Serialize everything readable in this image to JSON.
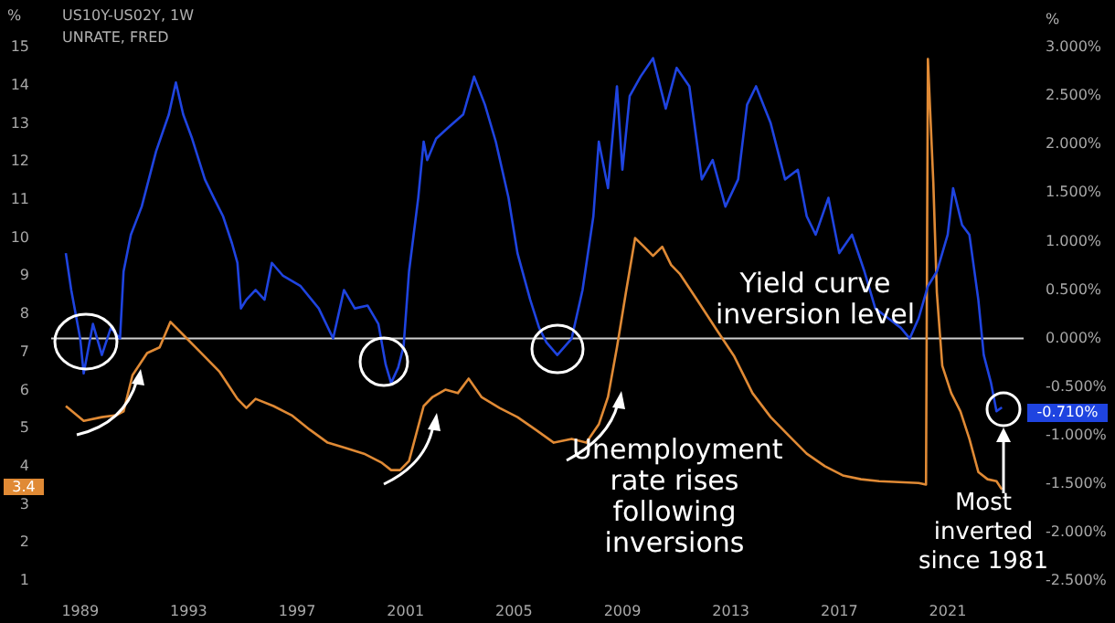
{
  "chart_data": {
    "type": "line",
    "title": "US10Y-US02Y, 1W",
    "subtitle": "UNRATE, FRED",
    "ylabel": "%",
    "y2label": "%",
    "xlim": [
      1987.93,
      2023.8
    ],
    "xticks": [
      1989,
      1993,
      1997,
      2001,
      2005,
      2009,
      2013,
      2017,
      2021
    ],
    "ylim": [
      1,
      15
    ],
    "yticks": [
      1,
      2,
      3,
      4,
      5,
      6,
      7,
      8,
      9,
      10,
      11,
      12,
      13,
      14,
      15
    ],
    "y2lim": [
      -2.5,
      3
    ],
    "y2ticks": [
      {
        "value": 3,
        "label": "3.000%"
      },
      {
        "value": 2.5,
        "label": "2.500%"
      },
      {
        "value": 2,
        "label": "2.000%"
      },
      {
        "value": 1.5,
        "label": "1.500%"
      },
      {
        "value": 1,
        "label": "1.000%"
      },
      {
        "value": 0.5,
        "label": "0.500%"
      },
      {
        "value": 0,
        "label": "0.000%"
      },
      {
        "value": -0.5,
        "label": "-0.500%"
      },
      {
        "value": -1,
        "label": "-1.000%"
      },
      {
        "value": -1.5,
        "label": "-1.500%"
      },
      {
        "value": -2,
        "label": "-2.000%"
      },
      {
        "value": -2.5,
        "label": "-2.500%"
      }
    ],
    "series": [
      {
        "axis": "y2",
        "color": "#1f44e0",
        "x": [
          1988.47,
          1988.67,
          1989.0,
          1989.13,
          1989.47,
          1989.8,
          1990.13,
          1990.47,
          1990.6,
          1990.87,
          1991.27,
          1991.8,
          1992.27,
          1992.53,
          1992.8,
          1993.13,
          1993.6,
          1993.93,
          1994.27,
          1994.6,
          1994.8,
          1994.93,
          1995.13,
          1995.47,
          1995.8,
          1996.07,
          1996.47,
          1997.13,
          1997.8,
          1998.33,
          1998.73,
          1999.13,
          1999.6,
          2000.0,
          2000.27,
          2000.47,
          2000.73,
          2000.93,
          2001.13,
          2001.47,
          2001.67,
          2001.8,
          2002.13,
          2002.6,
          2003.13,
          2003.53,
          2003.93,
          2004.33,
          2004.8,
          2005.13,
          2005.6,
          2005.93,
          2006.2,
          2006.6,
          2007.13,
          2007.53,
          2007.93,
          2008.13,
          2008.47,
          2008.8,
          2009.0,
          2009.27,
          2009.67,
          2010.13,
          2010.6,
          2011.0,
          2011.47,
          2011.93,
          2012.33,
          2012.8,
          2013.27,
          2013.6,
          2013.93,
          2014.47,
          2015.0,
          2015.47,
          2015.8,
          2016.13,
          2016.6,
          2017.0,
          2017.47,
          2017.93,
          2018.33,
          2018.8,
          2019.27,
          2019.6,
          2019.93,
          2020.27,
          2020.6,
          2021.0,
          2021.2,
          2021.53,
          2021.8,
          2022.13,
          2022.33,
          2022.6,
          2022.8,
          2023.0
        ],
        "values": [
          0.88,
          0.5,
          0,
          -0.36,
          0.15,
          -0.17,
          0.11,
          0,
          0.69,
          1.07,
          1.36,
          1.93,
          2.31,
          2.64,
          2.31,
          2.06,
          1.64,
          1.45,
          1.26,
          0.98,
          0.78,
          0.31,
          0.4,
          0.5,
          0.4,
          0.78,
          0.65,
          0.54,
          0.31,
          0,
          0.5,
          0.31,
          0.34,
          0.15,
          -0.27,
          -0.46,
          -0.3,
          -0.08,
          0.69,
          1.45,
          2.03,
          1.84,
          2.06,
          2.18,
          2.31,
          2.7,
          2.41,
          2.03,
          1.45,
          0.88,
          0.4,
          0.11,
          -0.04,
          -0.17,
          0,
          0.5,
          1.26,
          2.03,
          1.55,
          2.6,
          1.74,
          2.5,
          2.7,
          2.89,
          2.37,
          2.79,
          2.6,
          1.64,
          1.84,
          1.36,
          1.64,
          2.41,
          2.6,
          2.22,
          1.64,
          1.74,
          1.26,
          1.07,
          1.45,
          0.88,
          1.07,
          0.69,
          0.31,
          0.21,
          0.11,
          0,
          0.21,
          0.54,
          0.69,
          1.07,
          1.55,
          1.17,
          1.07,
          0.4,
          -0.17,
          -0.46,
          -0.75,
          -0.71
        ]
      },
      {
        "axis": "y",
        "color": "#e08a35",
        "x": [
          1988.47,
          1989.13,
          1989.8,
          1990.33,
          1990.6,
          1990.93,
          1991.47,
          1991.93,
          1992.33,
          1992.8,
          1993.47,
          1994.13,
          1994.8,
          1995.13,
          1995.47,
          1996.13,
          1996.8,
          1997.47,
          1998.13,
          1998.8,
          1999.47,
          2000.13,
          2000.47,
          2000.8,
          2001.13,
          2001.67,
          2002.0,
          2002.47,
          2002.93,
          2003.33,
          2003.8,
          2004.47,
          2005.13,
          2005.8,
          2006.47,
          2007.13,
          2007.67,
          2008.13,
          2008.47,
          2008.8,
          2009.13,
          2009.47,
          2009.8,
          2010.13,
          2010.47,
          2010.8,
          2011.13,
          2011.8,
          2012.47,
          2013.13,
          2013.8,
          2014.47,
          2015.13,
          2015.8,
          2016.47,
          2017.13,
          2017.8,
          2018.47,
          2019.93,
          2020.2,
          2020.27,
          2020.47,
          2020.6,
          2020.8,
          2021.13,
          2021.47,
          2021.8,
          2022.13,
          2022.47,
          2022.8,
          2023.0
        ],
        "values": [
          5.59,
          5.2,
          5.3,
          5.35,
          5.45,
          6.4,
          6.98,
          7.13,
          7.8,
          7.46,
          6.98,
          6.5,
          5.78,
          5.54,
          5.78,
          5.59,
          5.35,
          4.97,
          4.63,
          4.49,
          4.34,
          4.1,
          3.91,
          3.91,
          4.15,
          5.59,
          5.83,
          6.02,
          5.93,
          6.31,
          5.83,
          5.54,
          5.3,
          4.97,
          4.63,
          4.73,
          4.63,
          5.11,
          5.83,
          7.13,
          8.57,
          10.0,
          9.77,
          9.53,
          9.77,
          9.29,
          9.05,
          8.33,
          7.6,
          6.89,
          5.93,
          5.3,
          4.82,
          4.34,
          4.01,
          3.77,
          3.67,
          3.62,
          3.57,
          3.53,
          14.7,
          11.45,
          8.57,
          6.65,
          5.93,
          5.45,
          4.73,
          3.86,
          3.67,
          3.62,
          3.4
        ]
      }
    ],
    "ref_lines": [
      {
        "axis": "y2",
        "value": 0,
        "label": "Yield curve inversion level",
        "color": "#d0d0d0"
      }
    ],
    "annotations": [
      "Unemployment rate rises following inversions",
      "Most inverted since 1981",
      "3.4",
      "-0.710%"
    ]
  }
}
